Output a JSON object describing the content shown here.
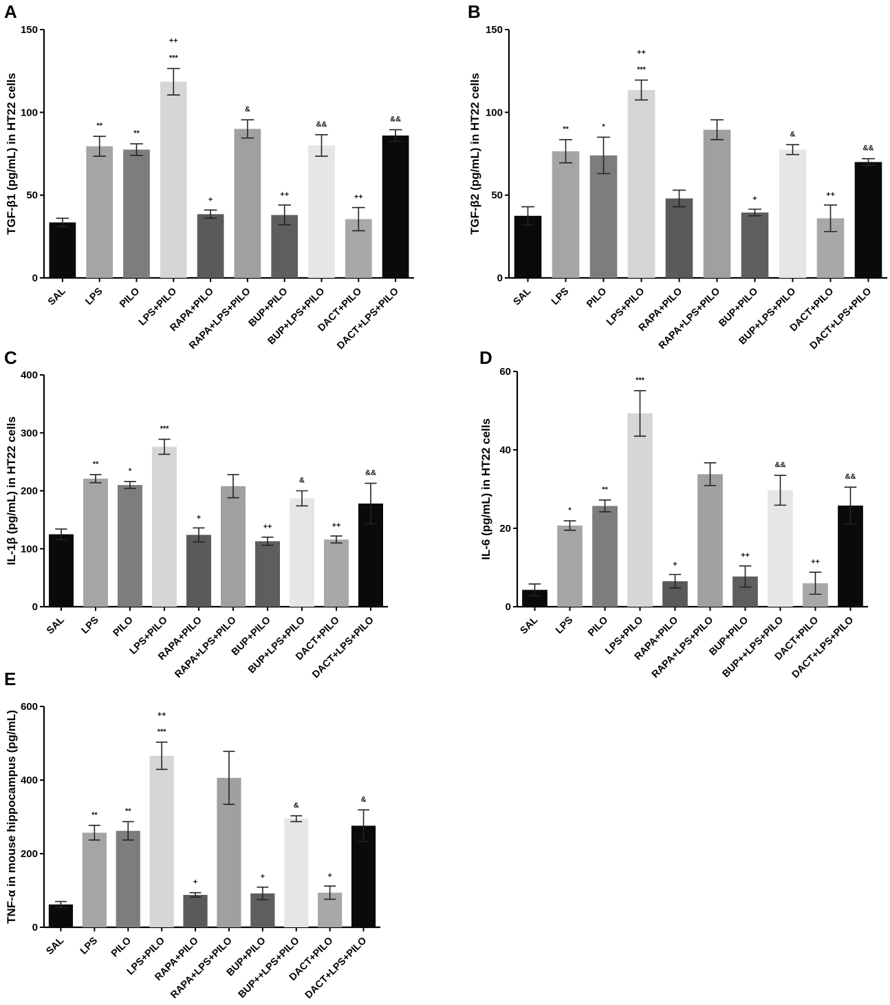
{
  "chart_data": [
    {
      "type": "bar",
      "panel": "A",
      "ylabel": "TGF-β1 (pg/mL) in HT22 cells",
      "ylim": [
        0,
        150
      ],
      "yticks": [
        "0",
        "50",
        "100",
        "150"
      ],
      "categories": [
        "SAL",
        "LPS",
        "PILO",
        "LPS+PILO",
        "RAPA+PILO",
        "RAPA+LPS+PILO",
        "BUP+PILO",
        "BUP+LPS+PILO",
        "DACT+PILO",
        "DACT+LPS+PILO"
      ],
      "values": [
        33.5,
        79.5,
        77.5,
        118.5,
        38.5,
        90,
        38,
        80,
        35.5,
        86
      ],
      "errors": [
        2.5,
        6,
        3.5,
        8,
        2.5,
        5.5,
        6,
        6.5,
        7,
        3.5
      ],
      "annotations": [
        [
          ""
        ],
        [
          "**"
        ],
        [
          "**"
        ],
        [
          "***",
          "++"
        ],
        [
          "+"
        ],
        [
          "&"
        ],
        [
          "++"
        ],
        [
          "&&"
        ],
        [
          "++"
        ],
        [
          "&&"
        ]
      ],
      "colors": [
        "#0a0a0a",
        "#a5a5a5",
        "#7d7d7d",
        "#d6d6d6",
        "#5a5a5a",
        "#a0a0a0",
        "#5e5e5e",
        "#e6e6e6",
        "#a8a8a8",
        "#0a0a0a"
      ]
    },
    {
      "type": "bar",
      "panel": "B",
      "ylabel": "TGF-β2 (pg/mL) in HT22 cells",
      "ylim": [
        0,
        150
      ],
      "yticks": [
        "0",
        "50",
        "100",
        "150"
      ],
      "categories": [
        "SAL",
        "LPS",
        "PILO",
        "LPS+PILO",
        "RAPA+PILO",
        "RAPA+LPS+PILO",
        "BUP+PILO",
        "BUP+LPS+PILO",
        "DACT+PILO",
        "DACT+LPS+PILO"
      ],
      "values": [
        37.5,
        76.5,
        74,
        113.5,
        48,
        89.5,
        39.5,
        77.5,
        36,
        70
      ],
      "errors": [
        5.5,
        7,
        11,
        6,
        5,
        6,
        2,
        3,
        8,
        2
      ],
      "annotations": [
        [
          ""
        ],
        [
          "**"
        ],
        [
          "*"
        ],
        [
          "***",
          "++"
        ],
        [
          ""
        ],
        [
          ""
        ],
        [
          "+"
        ],
        [
          "&"
        ],
        [
          "++"
        ],
        [
          "&&"
        ]
      ],
      "colors": [
        "#0a0a0a",
        "#a5a5a5",
        "#7d7d7d",
        "#d6d6d6",
        "#5a5a5a",
        "#a0a0a0",
        "#5e5e5e",
        "#e6e6e6",
        "#a8a8a8",
        "#0a0a0a"
      ]
    },
    {
      "type": "bar",
      "panel": "C",
      "ylabel": "IL-1β (pg/mL) in HT22 cells",
      "ylim": [
        0,
        400
      ],
      "yticks": [
        "0",
        "100",
        "200",
        "300",
        "400"
      ],
      "categories": [
        "SAL",
        "LPS",
        "PILO",
        "LPS+PILO",
        "RAPA+PILO",
        "RAPA+LPS+PILO",
        "BUP+PILO",
        "BUP+LPS+PILO",
        "DACT+PILO",
        "DACT+LPS+PILO"
      ],
      "values": [
        125,
        221,
        210,
        276,
        124,
        208,
        113,
        187,
        116,
        178
      ],
      "errors": [
        9,
        7,
        6,
        13,
        12,
        20,
        7,
        13,
        6,
        35
      ],
      "annotations": [
        [
          ""
        ],
        [
          "**"
        ],
        [
          "*"
        ],
        [
          "***"
        ],
        [
          "+"
        ],
        [
          ""
        ],
        [
          "++"
        ],
        [
          "&"
        ],
        [
          "++"
        ],
        [
          "&&"
        ]
      ],
      "colors": [
        "#0a0a0a",
        "#a5a5a5",
        "#7d7d7d",
        "#d6d6d6",
        "#5a5a5a",
        "#a0a0a0",
        "#5e5e5e",
        "#e6e6e6",
        "#a8a8a8",
        "#0a0a0a"
      ]
    },
    {
      "type": "bar",
      "panel": "D",
      "ylabel": "IL-6 (pg/mL) in HT22 cells",
      "ylim": [
        0,
        60
      ],
      "yticks": [
        "0",
        "20",
        "40",
        "60"
      ],
      "categories": [
        "SAL",
        "LPS",
        "PILO",
        "LPS+PILO",
        "RAPA+PILO",
        "RAPA+LPS+PILO",
        "BUP+PILO",
        "BUP++LPS+PILO",
        "DACT+PILO",
        "DACT+LPS+PILO"
      ],
      "values": [
        4.3,
        20.7,
        25.7,
        49.3,
        6.5,
        33.8,
        7.7,
        29.7,
        6,
        25.8
      ],
      "errors": [
        1.5,
        1.2,
        1.5,
        5.8,
        1.7,
        2.9,
        2.7,
        3.8,
        2.8,
        4.7
      ],
      "annotations": [
        [
          ""
        ],
        [
          "*"
        ],
        [
          "**"
        ],
        [
          "***"
        ],
        [
          "+"
        ],
        [
          ""
        ],
        [
          "++"
        ],
        [
          "&&"
        ],
        [
          "++"
        ],
        [
          "&&"
        ]
      ],
      "colors": [
        "#0a0a0a",
        "#a5a5a5",
        "#7d7d7d",
        "#d6d6d6",
        "#5a5a5a",
        "#a0a0a0",
        "#5e5e5e",
        "#e6e6e6",
        "#a8a8a8",
        "#0a0a0a"
      ]
    },
    {
      "type": "bar",
      "panel": "E",
      "ylabel": "TNF-α in mouse hippocampus (pg/mL)",
      "ylim": [
        0,
        600
      ],
      "yticks": [
        "0",
        "200",
        "400",
        "600"
      ],
      "categories": [
        "SAL",
        "LPS",
        "PILO",
        "LPS+PILO",
        "RAPA+PILO",
        "RAPA+LPS+PILO",
        "BUP+PILO",
        "BUP++LPS+PILO",
        "DACT+PILO",
        "DACT+LPS+PILO"
      ],
      "values": [
        62,
        257,
        262,
        466,
        88,
        406,
        92,
        295,
        94,
        276
      ],
      "errors": [
        8,
        20,
        25,
        37,
        6,
        72,
        17,
        8,
        18,
        43
      ],
      "annotations": [
        [
          ""
        ],
        [
          "**"
        ],
        [
          "**"
        ],
        [
          "***",
          "++"
        ],
        [
          "+"
        ],
        [
          ""
        ],
        [
          "+"
        ],
        [
          "&"
        ],
        [
          "+"
        ],
        [
          "&"
        ]
      ],
      "colors": [
        "#0a0a0a",
        "#a5a5a5",
        "#7d7d7d",
        "#d6d6d6",
        "#5a5a5a",
        "#a0a0a0",
        "#5e5e5e",
        "#e6e6e6",
        "#a8a8a8",
        "#0a0a0a"
      ]
    }
  ]
}
